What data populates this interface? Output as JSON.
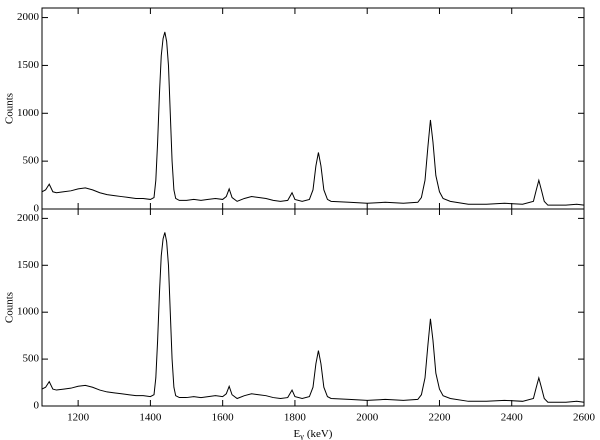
{
  "chart_data": [
    {
      "type": "line",
      "ylabel": "Counts",
      "x": [
        1100,
        1110,
        1120,
        1130,
        1140,
        1160,
        1180,
        1200,
        1220,
        1240,
        1260,
        1280,
        1300,
        1320,
        1340,
        1360,
        1380,
        1400,
        1410,
        1415,
        1420,
        1425,
        1430,
        1435,
        1440,
        1445,
        1450,
        1455,
        1460,
        1465,
        1470,
        1480,
        1500,
        1520,
        1540,
        1560,
        1580,
        1600,
        1610,
        1618,
        1626,
        1640,
        1660,
        1680,
        1700,
        1720,
        1740,
        1760,
        1780,
        1792,
        1800,
        1820,
        1840,
        1850,
        1858,
        1865,
        1872,
        1880,
        1890,
        1900,
        1950,
        2000,
        2050,
        2100,
        2140,
        2150,
        2160,
        2168,
        2175,
        2182,
        2190,
        2200,
        2210,
        2230,
        2280,
        2330,
        2380,
        2430,
        2460,
        2468,
        2475,
        2482,
        2490,
        2500,
        2550,
        2580,
        2600
      ],
      "series": [
        {
          "color": "#000000",
          "values": [
            180,
            200,
            260,
            180,
            170,
            180,
            190,
            210,
            220,
            200,
            170,
            150,
            140,
            130,
            120,
            110,
            110,
            100,
            120,
            300,
            700,
            1200,
            1600,
            1780,
            1850,
            1750,
            1500,
            1000,
            500,
            200,
            110,
            90,
            90,
            100,
            90,
            100,
            110,
            100,
            130,
            210,
            120,
            80,
            110,
            130,
            120,
            110,
            90,
            80,
            90,
            170,
            100,
            80,
            100,
            200,
            450,
            590,
            450,
            200,
            100,
            80,
            70,
            60,
            70,
            60,
            70,
            120,
            300,
            650,
            930,
            700,
            350,
            180,
            110,
            80,
            50,
            50,
            60,
            50,
            80,
            200,
            300,
            200,
            80,
            40,
            40,
            50,
            40
          ]
        }
      ],
      "xlim": [
        1100,
        2600
      ],
      "ylim": [
        0,
        2100
      ],
      "xticks": [
        1200,
        1400,
        1600,
        1800,
        2000,
        2200,
        2400,
        2600
      ],
      "xtick_labels": false,
      "yticks": [
        0,
        500,
        1000,
        1500,
        2000
      ]
    },
    {
      "type": "line",
      "ylabel": "Counts",
      "xlabel": "E",
      "xlabel_subscript": "γ",
      "xlabel_unit": "(keV)",
      "x": [
        1100,
        1110,
        1120,
        1130,
        1140,
        1160,
        1180,
        1200,
        1220,
        1240,
        1260,
        1280,
        1300,
        1320,
        1340,
        1360,
        1380,
        1400,
        1410,
        1415,
        1420,
        1425,
        1430,
        1435,
        1440,
        1445,
        1450,
        1455,
        1460,
        1465,
        1470,
        1480,
        1500,
        1520,
        1540,
        1560,
        1580,
        1600,
        1610,
        1618,
        1626,
        1640,
        1660,
        1680,
        1700,
        1720,
        1740,
        1760,
        1780,
        1792,
        1800,
        1820,
        1840,
        1850,
        1858,
        1865,
        1872,
        1880,
        1890,
        1900,
        1950,
        2000,
        2050,
        2100,
        2140,
        2150,
        2160,
        2168,
        2175,
        2182,
        2190,
        2200,
        2210,
        2230,
        2280,
        2330,
        2380,
        2430,
        2460,
        2468,
        2475,
        2482,
        2490,
        2500,
        2550,
        2580,
        2600
      ],
      "series": [
        {
          "color": "#000000",
          "values": [
            180,
            200,
            260,
            180,
            170,
            180,
            190,
            210,
            220,
            200,
            170,
            150,
            140,
            130,
            120,
            110,
            110,
            100,
            120,
            300,
            700,
            1200,
            1600,
            1780,
            1850,
            1750,
            1500,
            1000,
            500,
            200,
            110,
            90,
            90,
            100,
            90,
            100,
            110,
            100,
            130,
            210,
            120,
            80,
            110,
            130,
            120,
            110,
            90,
            80,
            90,
            170,
            100,
            80,
            100,
            200,
            450,
            590,
            450,
            200,
            100,
            80,
            70,
            60,
            70,
            60,
            70,
            120,
            300,
            650,
            930,
            700,
            350,
            180,
            110,
            80,
            50,
            50,
            60,
            50,
            80,
            200,
            300,
            200,
            80,
            40,
            40,
            50,
            40
          ]
        }
      ],
      "xlim": [
        1100,
        2600
      ],
      "ylim": [
        0,
        2100
      ],
      "xticks": [
        1200,
        1400,
        1600,
        1800,
        2000,
        2200,
        2400,
        2600
      ],
      "xtick_labels": true,
      "yticks": [
        0,
        500,
        1000,
        1500,
        2000
      ]
    }
  ]
}
